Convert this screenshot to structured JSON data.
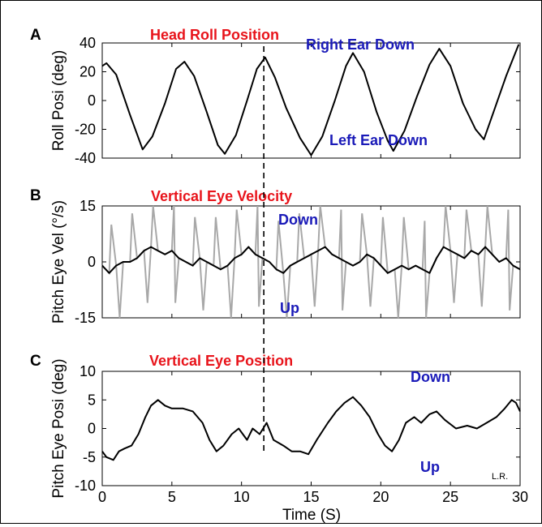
{
  "colors": {
    "title": "#e8141b",
    "annotation": "#1a1ab8",
    "trace": "#000000",
    "raw_trace": "#a8a8a8"
  },
  "credit": "L.R.",
  "chart_data": [
    {
      "type": "line",
      "panel": "A",
      "title": "Head Roll Position",
      "ylabel": "Roll Posi (deg)",
      "xlim": [
        0,
        30
      ],
      "ylim": [
        -40,
        40
      ],
      "yticks": [
        40,
        20,
        0,
        -20,
        -40
      ],
      "grid": false,
      "annotations": [
        "Right Ear Down",
        "Left Ear Down"
      ],
      "series": [
        {
          "x": [
            0,
            0.3,
            1.0,
            2.0,
            2.9,
            3.6,
            4.5,
            5.3,
            5.9,
            6.6,
            7.5,
            8.3,
            8.8,
            9.6,
            10.4,
            11.1,
            11.7,
            12.4,
            13.2,
            14.2,
            15.0,
            15.8,
            16.7,
            17.5,
            18.0,
            18.8,
            19.7,
            20.5,
            20.9,
            21.7,
            22.6,
            23.5,
            24.2,
            25.0,
            25.9,
            26.8,
            27.4,
            28.2,
            29.0,
            29.9
          ],
          "y": [
            24,
            26,
            18,
            -10,
            -34,
            -25,
            -2,
            22,
            27,
            17,
            -8,
            -31,
            -37,
            -24,
            0,
            22,
            30,
            16,
            -5,
            -26,
            -38,
            -25,
            0,
            24,
            33,
            20,
            -8,
            -28,
            -35,
            -21,
            3,
            25,
            36,
            24,
            -2,
            -20,
            -27,
            -5,
            17,
            39
          ]
        }
      ]
    },
    {
      "type": "line",
      "panel": "B",
      "title": "Vertical Eye Velocity",
      "ylabel": "Pitch Eye Vel (°/s)",
      "xlim": [
        0,
        30
      ],
      "ylim": [
        -15,
        15
      ],
      "yticks": [
        15,
        0,
        -15
      ],
      "grid": false,
      "annotations": [
        "Down",
        "Up"
      ],
      "series": [
        {
          "x": [
            0,
            0.5,
            1,
            1.5,
            2,
            2.5,
            3,
            3.5,
            4,
            4.5,
            5,
            5.5,
            6,
            6.5,
            7,
            7.5,
            8,
            8.5,
            9,
            9.5,
            10,
            10.5,
            11,
            11.5,
            12,
            12.5,
            13,
            13.5,
            14,
            14.5,
            15,
            15.5,
            16,
            16.5,
            17,
            17.5,
            18,
            18.5,
            19,
            19.5,
            20,
            20.5,
            21,
            21.5,
            22,
            22.5,
            23,
            23.5,
            24,
            24.5,
            25,
            25.5,
            26,
            26.5,
            27,
            27.5,
            28,
            28.5,
            29,
            29.5,
            30
          ],
          "y": [
            -1,
            -3,
            -1,
            0,
            0,
            1,
            3,
            4,
            3,
            2,
            3,
            1,
            0,
            -1,
            1,
            0,
            -1,
            -2,
            -1,
            1,
            2,
            4,
            2,
            1,
            0,
            -2,
            -3,
            -1,
            0,
            1,
            2,
            3,
            4,
            2,
            1,
            0,
            -1,
            0,
            2,
            1,
            -1,
            -3,
            -2,
            -1,
            -2,
            -1,
            -2,
            -3,
            1,
            4,
            3,
            2,
            1,
            3,
            2,
            4,
            2,
            0,
            1,
            -1,
            -2
          ]
        }
      ]
    },
    {
      "type": "line",
      "panel": "C",
      "title": "Vertical Eye Position",
      "xlabel": "Time (S)",
      "ylabel": "Pitch Eye Posi (deg)",
      "xlim": [
        0,
        30
      ],
      "ylim": [
        -10,
        10
      ],
      "xticks": [
        0,
        5,
        10,
        15,
        20,
        25,
        30
      ],
      "yticks": [
        10,
        5,
        0,
        -5,
        -10
      ],
      "grid": false,
      "annotations": [
        "Down",
        "Up"
      ],
      "series": [
        {
          "x": [
            0,
            0.3,
            0.8,
            1.2,
            1.6,
            2.1,
            2.6,
            3.1,
            3.5,
            4.0,
            4.5,
            5.0,
            5.8,
            6.5,
            7.2,
            7.7,
            8.2,
            8.7,
            9.3,
            9.8,
            10.4,
            10.8,
            11.3,
            11.8,
            12.3,
            13.0,
            13.6,
            14.2,
            14.8,
            15.4,
            16.2,
            16.8,
            17.4,
            18.0,
            18.6,
            19.2,
            19.8,
            20.3,
            20.8,
            21.3,
            21.8,
            22.4,
            22.9,
            23.5,
            24.0,
            24.6,
            25.4,
            26.2,
            26.9,
            27.6,
            28.3,
            28.9,
            29.4,
            29.7,
            30.0
          ],
          "y": [
            -4,
            -5,
            -5.5,
            -4,
            -3.5,
            -3,
            -1,
            2,
            4,
            5,
            4,
            3.5,
            3.5,
            3,
            1,
            -2,
            -4,
            -3,
            -1,
            0,
            -2,
            0,
            -1,
            1,
            -2,
            -3,
            -4,
            -4,
            -4.5,
            -2,
            1,
            3,
            4.5,
            5.5,
            4,
            2,
            -1,
            -3,
            -4,
            -2,
            1,
            2,
            1,
            2.5,
            3,
            1.5,
            0,
            0.5,
            0,
            1,
            2,
            3.5,
            5,
            4.5,
            3
          ]
        }
      ]
    }
  ]
}
